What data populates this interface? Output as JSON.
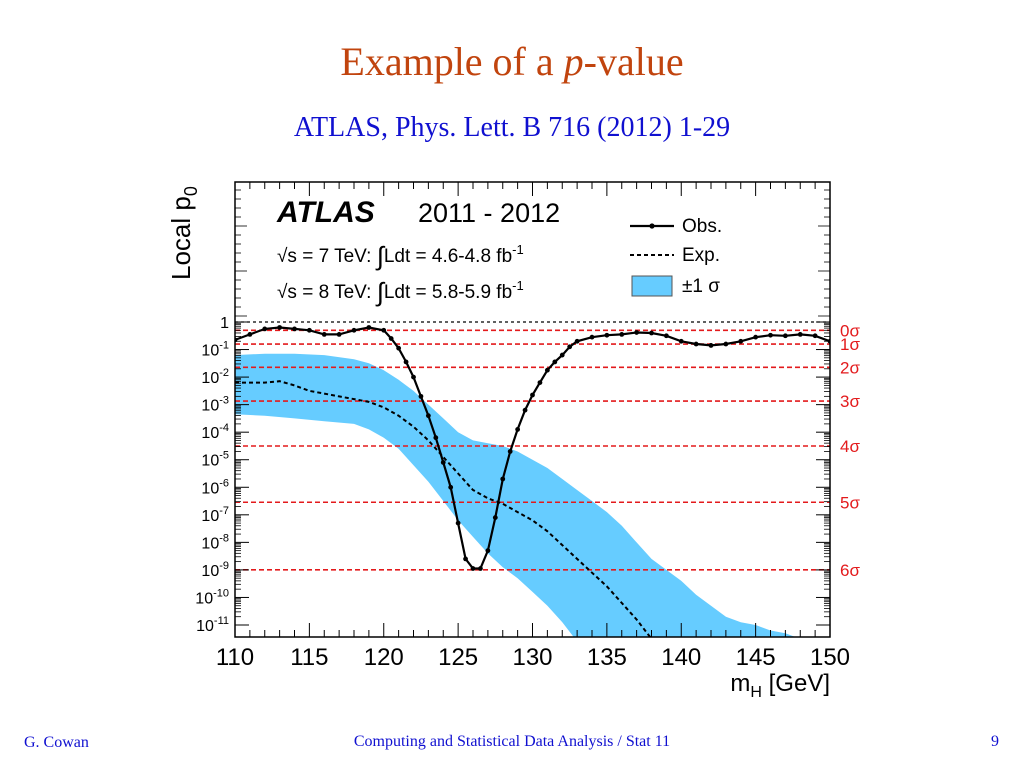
{
  "slide": {
    "title_prefix": "Example of a ",
    "title_italic": "p",
    "title_suffix": "-value",
    "reference": "ATLAS, Phys. Lett. B 716 (2012) 1-29",
    "footer_author": "G. Cowan",
    "footer_course": "Computing and Statistical Data Analysis / Stat 11",
    "page_number": "9"
  },
  "chart_data": {
    "type": "line",
    "ylabel": "Local p",
    "ylabel_sub": "0",
    "xlabel": "m",
    "xlabel_sub": "H",
    "xlabel_unit": " [GeV]",
    "xlim": [
      110,
      150
    ],
    "ylim_log10": [
      -11.8,
      0.4
    ],
    "y_scale": "log",
    "x_ticks": [
      110,
      115,
      120,
      125,
      130,
      135,
      140,
      145,
      150
    ],
    "y_tick_labels": [
      {
        "value": 0,
        "base": "1",
        "exp": ""
      },
      {
        "value": -1,
        "base": "10",
        "exp": "-1"
      },
      {
        "value": -2,
        "base": "10",
        "exp": "-2"
      },
      {
        "value": -3,
        "base": "10",
        "exp": "-3"
      },
      {
        "value": -4,
        "base": "10",
        "exp": "-4"
      },
      {
        "value": -5,
        "base": "10",
        "exp": "-5"
      },
      {
        "value": -6,
        "base": "10",
        "exp": "-6"
      },
      {
        "value": -7,
        "base": "10",
        "exp": "-7"
      },
      {
        "value": -8,
        "base": "10",
        "exp": "-8"
      },
      {
        "value": -9,
        "base": "10",
        "exp": "-9"
      },
      {
        "value": -10,
        "base": "10",
        "exp": "-10"
      },
      {
        "value": -11,
        "base": "10",
        "exp": "-11"
      }
    ],
    "annotation": {
      "experiment": "ATLAS",
      "period": "2011 - 2012",
      "line1_prefix": "√s = 7 TeV:",
      "line1_integral": "Ldt = 4.6-4.8 fb",
      "line1_exp": "-1",
      "line2_prefix": "√s = 8 TeV:",
      "line2_integral": "Ldt = 5.8-5.9 fb",
      "line2_exp": "-1"
    },
    "legend": {
      "position": "top-right",
      "entries": [
        "Obs.",
        "Exp.",
        "±1 σ"
      ]
    },
    "sigma_lines": [
      {
        "label": "0σ",
        "log10p": -0.301
      },
      {
        "label": "1σ",
        "log10p": -0.801
      },
      {
        "label": "2σ",
        "log10p": -1.644
      },
      {
        "label": "3σ",
        "log10p": -2.87
      },
      {
        "label": "4σ",
        "log10p": -4.502
      },
      {
        "label": "5σ",
        "log10p": -6.544
      },
      {
        "label": "6σ",
        "log10p": -8.996
      }
    ],
    "series": [
      {
        "name": "Obs.",
        "log10_values": [
          [
            110,
            -0.65
          ],
          [
            111,
            -0.45
          ],
          [
            112,
            -0.25
          ],
          [
            113,
            -0.2
          ],
          [
            114,
            -0.25
          ],
          [
            115,
            -0.3
          ],
          [
            116,
            -0.45
          ],
          [
            117,
            -0.45
          ],
          [
            118,
            -0.3
          ],
          [
            119,
            -0.2
          ],
          [
            120,
            -0.3
          ],
          [
            120.5,
            -0.6
          ],
          [
            121,
            -0.95
          ],
          [
            121.5,
            -1.45
          ],
          [
            122,
            -2.0
          ],
          [
            122.5,
            -2.7
          ],
          [
            123,
            -3.4
          ],
          [
            123.5,
            -4.2
          ],
          [
            124,
            -5.1
          ],
          [
            124.5,
            -6.0
          ],
          [
            125,
            -7.3
          ],
          [
            125.5,
            -8.6
          ],
          [
            126,
            -8.95
          ],
          [
            126.5,
            -8.95
          ],
          [
            127,
            -8.3
          ],
          [
            127.5,
            -7.1
          ],
          [
            128,
            -5.7
          ],
          [
            128.5,
            -4.7
          ],
          [
            129,
            -3.9
          ],
          [
            129.5,
            -3.2
          ],
          [
            130,
            -2.65
          ],
          [
            130.5,
            -2.2
          ],
          [
            131,
            -1.75
          ],
          [
            131.5,
            -1.45
          ],
          [
            132,
            -1.2
          ],
          [
            132.5,
            -0.9
          ],
          [
            133,
            -0.7
          ],
          [
            134,
            -0.55
          ],
          [
            135,
            -0.48
          ],
          [
            136,
            -0.45
          ],
          [
            137,
            -0.38
          ],
          [
            138,
            -0.4
          ],
          [
            139,
            -0.5
          ],
          [
            140,
            -0.7
          ],
          [
            141,
            -0.8
          ],
          [
            142,
            -0.85
          ],
          [
            143,
            -0.8
          ],
          [
            144,
            -0.7
          ],
          [
            145,
            -0.55
          ],
          [
            146,
            -0.48
          ],
          [
            147,
            -0.5
          ],
          [
            148,
            -0.45
          ],
          [
            149,
            -0.5
          ],
          [
            150,
            -0.7
          ]
        ]
      },
      {
        "name": "Exp.",
        "log10_values": [
          [
            110,
            -2.2
          ],
          [
            111,
            -2.2
          ],
          [
            112,
            -2.2
          ],
          [
            113,
            -2.15
          ],
          [
            114,
            -2.3
          ],
          [
            115,
            -2.5
          ],
          [
            116,
            -2.6
          ],
          [
            117,
            -2.7
          ],
          [
            118,
            -2.8
          ],
          [
            119,
            -2.9
          ],
          [
            120,
            -3.1
          ],
          [
            121,
            -3.4
          ],
          [
            122,
            -3.8
          ],
          [
            123,
            -4.3
          ],
          [
            124,
            -4.9
          ],
          [
            125,
            -5.5
          ],
          [
            126,
            -6.1
          ],
          [
            127,
            -6.4
          ],
          [
            128,
            -6.6
          ],
          [
            129,
            -6.9
          ],
          [
            130,
            -7.2
          ],
          [
            131,
            -7.6
          ],
          [
            132,
            -8.1
          ],
          [
            133,
            -8.6
          ],
          [
            134,
            -9.1
          ],
          [
            135,
            -9.6
          ],
          [
            136,
            -10.2
          ],
          [
            137,
            -10.8
          ],
          [
            138,
            -11.5
          ],
          [
            139,
            -12.2
          ]
        ]
      }
    ],
    "band": {
      "name": "±1 σ",
      "upper": [
        [
          110,
          -1.2
        ],
        [
          112,
          -1.15
        ],
        [
          114,
          -1.15
        ],
        [
          116,
          -1.2
        ],
        [
          118,
          -1.35
        ],
        [
          119,
          -1.5
        ],
        [
          120,
          -1.75
        ],
        [
          121,
          -2.1
        ],
        [
          122,
          -2.5
        ],
        [
          123,
          -3.0
        ],
        [
          124,
          -3.5
        ],
        [
          125,
          -4.0
        ],
        [
          126,
          -4.3
        ],
        [
          127,
          -4.4
        ],
        [
          128,
          -4.5
        ],
        [
          129,
          -4.7
        ],
        [
          130,
          -5.0
        ],
        [
          131,
          -5.3
        ],
        [
          132,
          -5.7
        ],
        [
          133,
          -6.1
        ],
        [
          134,
          -6.5
        ],
        [
          135,
          -6.9
        ],
        [
          136,
          -7.4
        ],
        [
          137,
          -8.0
        ],
        [
          138,
          -8.6
        ],
        [
          139,
          -9.0
        ],
        [
          140,
          -9.4
        ],
        [
          141,
          -9.9
        ],
        [
          142,
          -10.3
        ],
        [
          143,
          -10.7
        ],
        [
          144,
          -10.9
        ],
        [
          145,
          -11.0
        ],
        [
          146,
          -11.2
        ],
        [
          147,
          -11.3
        ],
        [
          148,
          -11.5
        ],
        [
          149,
          -11.7
        ],
        [
          150,
          -11.85
        ]
      ],
      "lower": [
        [
          110,
          -3.35
        ],
        [
          112,
          -3.4
        ],
        [
          114,
          -3.5
        ],
        [
          116,
          -3.6
        ],
        [
          118,
          -3.7
        ],
        [
          119,
          -3.9
        ],
        [
          120,
          -4.2
        ],
        [
          121,
          -4.6
        ],
        [
          122,
          -5.2
        ],
        [
          123,
          -5.8
        ],
        [
          124,
          -6.5
        ],
        [
          125,
          -7.2
        ],
        [
          126,
          -7.8
        ],
        [
          127,
          -8.4
        ],
        [
          128,
          -8.9
        ],
        [
          129,
          -9.3
        ],
        [
          130,
          -9.8
        ],
        [
          131,
          -10.3
        ],
        [
          132,
          -10.9
        ],
        [
          133,
          -11.6
        ],
        [
          134,
          -12.3
        ],
        [
          150,
          -12.3
        ]
      ]
    },
    "colors": {
      "observed": "#000000",
      "expected": "#000000",
      "band": "#66ccff",
      "sigma": "#e31a1c",
      "title": "#c1440e",
      "reference": "#1010d0"
    }
  }
}
